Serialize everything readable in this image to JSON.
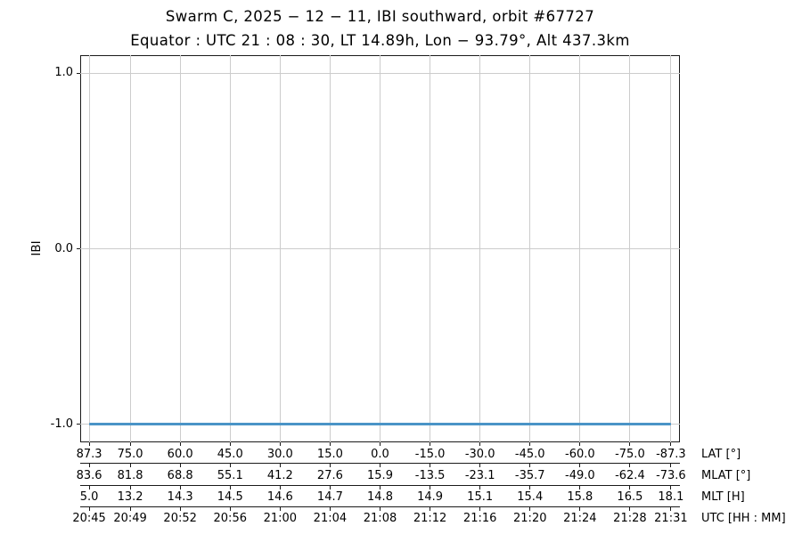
{
  "chart_data": {
    "type": "line",
    "title": "Swarm C,  2025 − 12 − 11,  IBI southward,  orbit #67727",
    "subtitle": "Equator :  UTC 21 : 08 : 30,  LT 14.89h,  Lon  − 93.79°,  Alt 437.3km",
    "ylabel": "IBI",
    "ylim": [
      -1.1,
      1.1
    ],
    "grid": true,
    "legend": "none",
    "colors": {
      "series_blue": "#4a94c7",
      "gridline": "#cccccc",
      "axis": "#1a1a1a"
    },
    "yticks": [
      {
        "value": 1.0,
        "label": "1.0"
      },
      {
        "value": 0.0,
        "label": "0.0"
      },
      {
        "value": -1.0,
        "label": "-1.0"
      }
    ],
    "xlim_lat": [
      90,
      -90
    ],
    "series": [
      {
        "name": "IBI",
        "color": "#4a94c7",
        "shape": "constant horizontal line",
        "value": -1.0,
        "lat_start": 87.3,
        "lat_end": -87.3
      }
    ],
    "x_axis_rows": [
      {
        "label": "LAT [°]",
        "tick_lats": [
          87.3,
          75,
          60,
          45,
          30,
          15,
          0,
          -15,
          -30,
          -45,
          -60,
          -75,
          -87.3
        ],
        "tick_labels": [
          "87.3",
          "75.0",
          "60.0",
          "45.0",
          "30.0",
          "15.0",
          "0.0",
          "-15.0",
          "-30.0",
          "-45.0",
          "-60.0",
          "-75.0",
          "-87.3"
        ]
      },
      {
        "label": "MLAT [°]",
        "tick_labels": [
          "83.6",
          "81.8",
          "68.8",
          "55.1",
          "41.2",
          "27.6",
          "15.9",
          "-13.5",
          "-23.1",
          "-35.7",
          "-49.0",
          "-62.4",
          "-73.6"
        ]
      },
      {
        "label": "MLT [H]",
        "tick_labels": [
          "5.0",
          "13.2",
          "14.3",
          "14.5",
          "14.6",
          "14.7",
          "14.8",
          "14.9",
          "15.1",
          "15.4",
          "15.8",
          "16.5",
          "18.1"
        ]
      },
      {
        "label": "UTC [HH : MM]",
        "tick_labels": [
          "20:45",
          "20:49",
          "20:52",
          "20:56",
          "21:00",
          "21:04",
          "21:08",
          "21:12",
          "21:16",
          "21:20",
          "21:24",
          "21:28",
          "21:31"
        ]
      }
    ]
  }
}
